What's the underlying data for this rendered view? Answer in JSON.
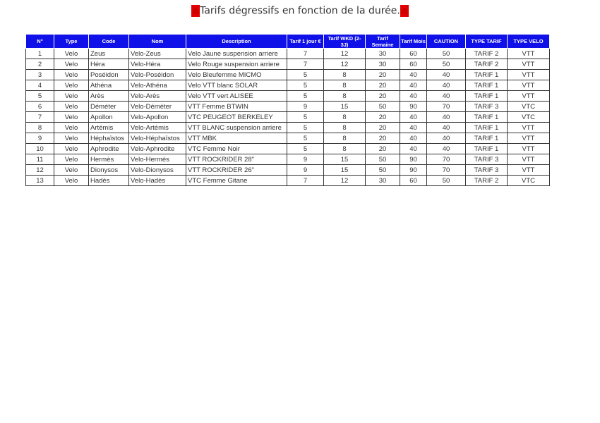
{
  "title": {
    "text": "Tarifs dégressifs en fonction de la durée.",
    "warning_icon": "⚠"
  },
  "colors": {
    "header_bg": "#1010e8",
    "warning_bg": "#e00000"
  },
  "columns": [
    "N°",
    "Type",
    "Code",
    "Nom",
    "Description",
    "Tarif 1 jour €",
    "Tarif WKD (2-3J)",
    "Tarif Semaine",
    "Tarif Mois",
    "CAUTION",
    "TYPE TARIF",
    "TYPE VELO"
  ],
  "rows": [
    [
      "1",
      "Velo",
      "Zeus",
      "Velo-Zeus",
      "Velo Jaune suspension arriere",
      "7",
      "12",
      "30",
      "60",
      "50",
      "TARIF 2",
      "VTT"
    ],
    [
      "2",
      "Velo",
      "Héra",
      "Velo-Héra",
      "Velo Rouge suspension arriere",
      "7",
      "12",
      "30",
      "60",
      "50",
      "TARIF 2",
      "VTT"
    ],
    [
      "3",
      "Velo",
      "Poséidon",
      "Velo-Poséidon",
      "Velo Bleufemme MICMO",
      "5",
      "8",
      "20",
      "40",
      "40",
      "TARIF 1",
      "VTT"
    ],
    [
      "4",
      "Velo",
      "Athéna",
      "Velo-Athéna",
      "Velo VTT blanc SOLAR",
      "5",
      "8",
      "20",
      "40",
      "40",
      "TARIF 1",
      "VTT"
    ],
    [
      "5",
      "Velo",
      "Arès",
      "Velo-Arès",
      "Velo VTT vert ALISEE",
      "5",
      "8",
      "20",
      "40",
      "40",
      "TARIF 1",
      "VTT"
    ],
    [
      "6",
      "Velo",
      "Déméter",
      "Velo-Déméter",
      "VTT Femme BTWIN",
      "9",
      "15",
      "50",
      "90",
      "70",
      "TARIF 3",
      "VTC"
    ],
    [
      "7",
      "Velo",
      "Apollon",
      "Velo-Apollon",
      "VTC PEUGEOT BERKELEY",
      "5",
      "8",
      "20",
      "40",
      "40",
      "TARIF 1",
      "VTC"
    ],
    [
      "8",
      "Velo",
      "Artémis",
      "Velo-Artémis",
      "VTT BLANC suspension arriere",
      "5",
      "8",
      "20",
      "40",
      "40",
      "TARIF 1",
      "VTT"
    ],
    [
      "9",
      "Velo",
      "Héphaïstos",
      "Velo-Héphaïstos",
      "VTT MBK",
      "5",
      "8",
      "20",
      "40",
      "40",
      "TARIF 1",
      "VTT"
    ],
    [
      "10",
      "Velo",
      "Aphrodite",
      "Velo-Aphrodite",
      "VTC Femme Noir",
      "5",
      "8",
      "20",
      "40",
      "40",
      "TARIF 1",
      "VTT"
    ],
    [
      "11",
      "Velo",
      "Hermès",
      "Velo-Hermès",
      "VTT ROCKRIDER 28\"",
      "9",
      "15",
      "50",
      "90",
      "70",
      "TARIF 3",
      "VTT"
    ],
    [
      "12",
      "Velo",
      "Dionysos",
      "Velo-Dionysos",
      "VTT ROCKRIDER 26\"",
      "9",
      "15",
      "50",
      "90",
      "70",
      "TARIF 3",
      "VTT"
    ],
    [
      "13",
      "Velo",
      "Hadès",
      "Velo-Hadès",
      "VTC Femme Gitane",
      "7",
      "12",
      "30",
      "60",
      "50",
      "TARIF 2",
      "VTC"
    ]
  ]
}
